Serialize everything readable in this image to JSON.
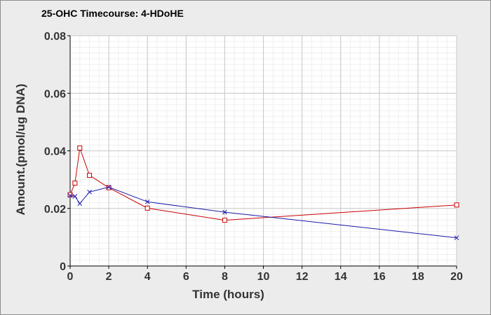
{
  "chart_data": {
    "type": "line",
    "title": "25-OHC Timecourse: 4-HDoHE",
    "xlabel": "Time (hours)",
    "ylabel": "Amount.(pmol/ug DNA)",
    "xlim": [
      0,
      20
    ],
    "ylim": [
      0,
      0.08
    ],
    "xticks": [
      "0",
      "2",
      "4",
      "6",
      "8",
      "10",
      "12",
      "14",
      "16",
      "18",
      "20"
    ],
    "yticks": [
      "0",
      "0.02",
      "0.04",
      "0.06",
      "0.08"
    ],
    "grid": true,
    "series": [
      {
        "marker": "square",
        "color": "#cc0000",
        "points": [
          [
            0,
            0.0248
          ],
          [
            0.25,
            0.0288
          ],
          [
            0.5,
            0.041
          ],
          [
            1,
            0.0315
          ],
          [
            2,
            0.0272
          ],
          [
            4,
            0.0201
          ],
          [
            8,
            0.0159
          ],
          [
            20,
            0.0212
          ]
        ]
      },
      {
        "marker": "x",
        "color": "#1a1aaa",
        "points": [
          [
            0,
            0.0245
          ],
          [
            0.25,
            0.0242
          ],
          [
            0.5,
            0.0217
          ],
          [
            1,
            0.0257
          ],
          [
            2,
            0.0274
          ],
          [
            4,
            0.0223
          ],
          [
            8,
            0.0187
          ],
          [
            20,
            0.0098
          ]
        ]
      }
    ]
  }
}
